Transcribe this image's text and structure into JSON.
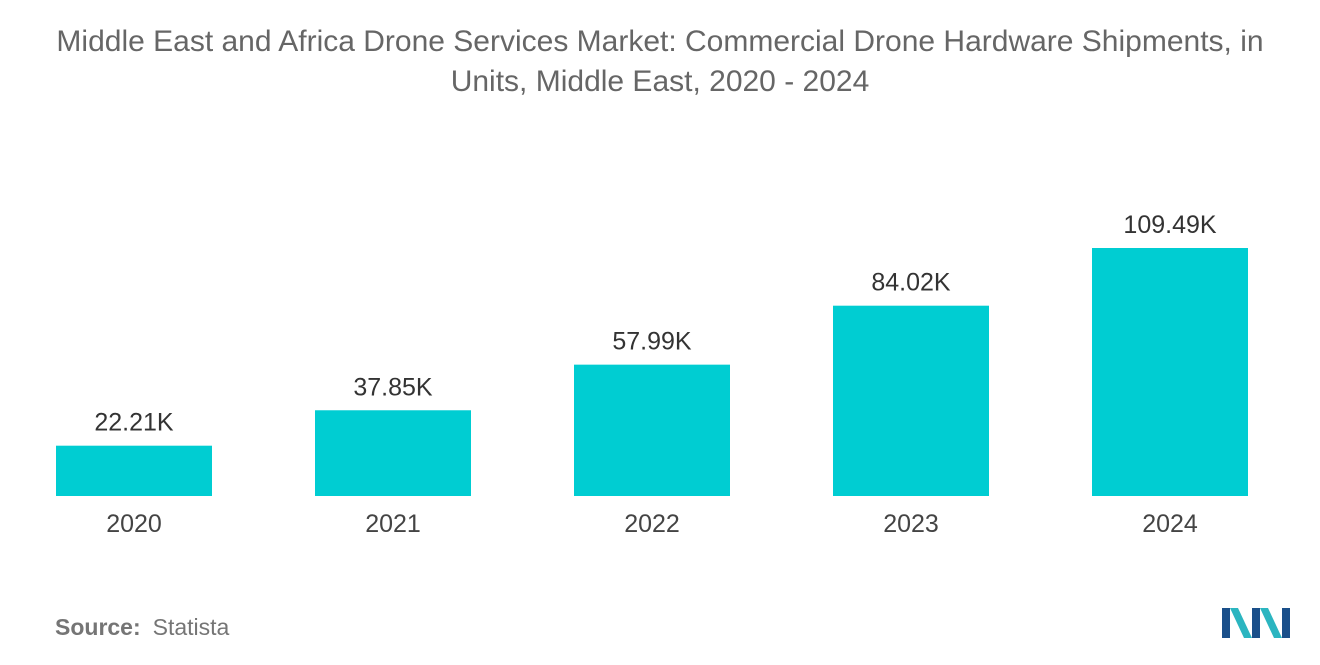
{
  "title_lines": [
    "Middle East and Africa Drone Services Market: Commercial Drone Hardware Shipments, in",
    "Units, Middle East, 2020 - 2024"
  ],
  "source": {
    "label": "Source:",
    "value": "Statista"
  },
  "logo": {
    "icon": "mordor-intelligence-logo-icon",
    "colors": [
      "#1a4f8a",
      "#2bb5c0"
    ]
  },
  "chart_data": {
    "type": "bar",
    "title": "Middle East and Africa Drone Services Market: Commercial Drone Hardware Shipments, in Units, Middle East, 2020 - 2024",
    "xlabel": "",
    "ylabel": "",
    "categories": [
      "2020",
      "2021",
      "2022",
      "2023",
      "2024"
    ],
    "values": [
      22.21,
      37.85,
      57.99,
      84.02,
      109.49
    ],
    "value_labels": [
      "22.21K",
      "37.85K",
      "57.99K",
      "84.02K",
      "109.49K"
    ],
    "unit": "K units",
    "ylim": [
      0,
      109.49
    ],
    "grid": false,
    "legend": "none",
    "bar_color": "#00cdd2"
  }
}
